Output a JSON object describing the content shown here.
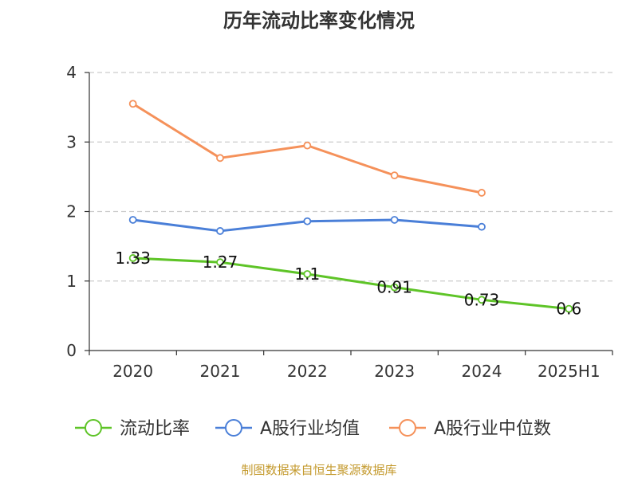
{
  "chart_data": {
    "type": "line",
    "title": "历年流动比率变化情况",
    "categories": [
      "2020",
      "2021",
      "2022",
      "2023",
      "2024",
      "2025H1"
    ],
    "y_ticks": [
      "0",
      "1",
      "2",
      "3",
      "4"
    ],
    "ylim": [
      0,
      4
    ],
    "grid": true,
    "legend_position": "bottom",
    "series": [
      {
        "name": "流动比率",
        "color": "#5ec427",
        "values": [
          1.33,
          1.27,
          1.1,
          0.91,
          0.73,
          0.6
        ],
        "labels": [
          "1.33",
          "1.27",
          "1.1",
          "0.91",
          "0.73",
          "0.6"
        ]
      },
      {
        "name": "A股行业均值",
        "color": "#4a7fd8",
        "values": [
          1.88,
          1.72,
          1.86,
          1.88,
          1.78,
          null
        ]
      },
      {
        "name": "A股行业中位数",
        "color": "#f5915a",
        "values": [
          3.55,
          2.77,
          2.95,
          2.52,
          2.27,
          null
        ]
      }
    ]
  },
  "source": "制图数据来自恒生聚源数据库"
}
